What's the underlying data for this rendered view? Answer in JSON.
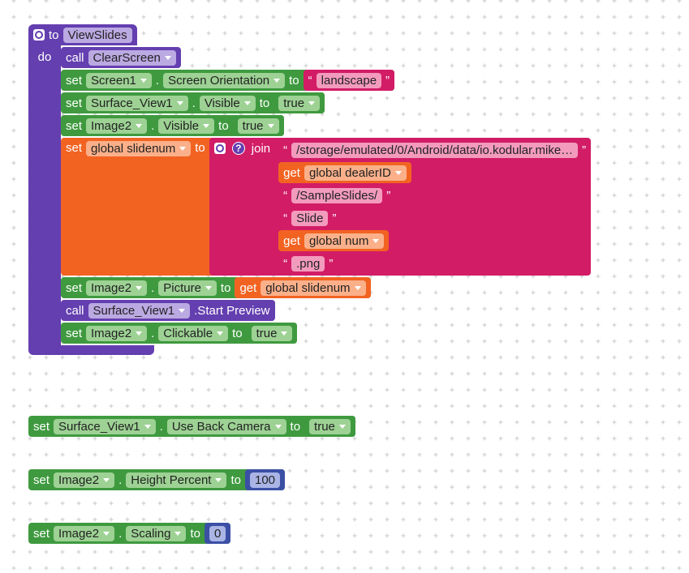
{
  "quotes": [
    "“",
    "”"
  ],
  "procedure": {
    "keyword": "to",
    "name": "ViewSlides",
    "do": "do",
    "statements": [
      {
        "kind": "call",
        "keyword": "call",
        "component": "ClearScreen"
      },
      {
        "kind": "set",
        "keyword": "set",
        "component": "Screen1",
        "dot": ".",
        "property": "Screen Orientation",
        "to": "to",
        "value": {
          "kind": "text",
          "text": "landscape"
        }
      },
      {
        "kind": "set",
        "keyword": "set",
        "component": "Surface_View1",
        "dot": ".",
        "property": "Visible",
        "to": "to",
        "value": {
          "kind": "logic",
          "value": "true"
        }
      },
      {
        "kind": "set",
        "keyword": "set",
        "component": "Image2",
        "dot": ".",
        "property": "Visible",
        "to": "to",
        "value": {
          "kind": "logic",
          "value": "true"
        }
      },
      {
        "kind": "set_global",
        "keyword": "set",
        "variable": "global slidenum",
        "to": "to",
        "value": {
          "kind": "join",
          "keyword": "join",
          "help": "?",
          "items": [
            {
              "kind": "text",
              "text": "/storage/emulated/0/Android/data/io.kodular.mike…"
            },
            {
              "kind": "get",
              "keyword": "get",
              "variable": "global dealerID"
            },
            {
              "kind": "text",
              "text": "/SampleSlides/"
            },
            {
              "kind": "text",
              "text": "Slide"
            },
            {
              "kind": "get",
              "keyword": "get",
              "variable": "global num"
            },
            {
              "kind": "text",
              "text": ".png"
            }
          ]
        }
      },
      {
        "kind": "set",
        "keyword": "set",
        "component": "Image2",
        "dot": ".",
        "property": "Picture",
        "to": "to",
        "value": {
          "kind": "get",
          "keyword": "get",
          "variable": "global slidenum"
        }
      },
      {
        "kind": "call",
        "keyword": "call",
        "component": "Surface_View1",
        "method": ".Start Preview"
      },
      {
        "kind": "set",
        "keyword": "set",
        "component": "Image2",
        "dot": ".",
        "property": "Clickable",
        "to": "to",
        "value": {
          "kind": "logic",
          "value": "true"
        }
      }
    ]
  },
  "loose_blocks": [
    {
      "kind": "set",
      "keyword": "set",
      "component": "Surface_View1",
      "dot": ".",
      "property": "Use Back Camera",
      "to": "to",
      "value": {
        "kind": "logic",
        "value": "true"
      }
    },
    {
      "kind": "set",
      "keyword": "set",
      "component": "Image2",
      "dot": ".",
      "property": "Height Percent",
      "to": "to",
      "value": {
        "kind": "number",
        "value": 100
      }
    },
    {
      "kind": "set",
      "keyword": "set",
      "component": "Image2",
      "dot": ".",
      "property": "Scaling",
      "to": "to",
      "value": {
        "kind": "number",
        "value": 0
      }
    }
  ]
}
